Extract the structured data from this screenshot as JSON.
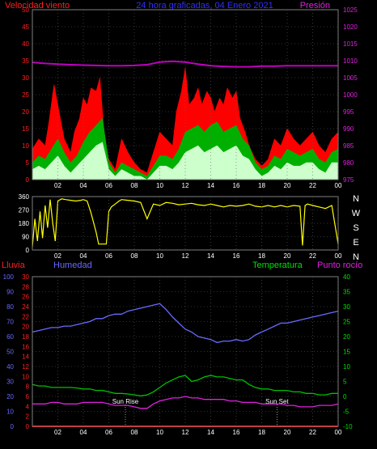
{
  "header": {
    "left": "Velocidad viento",
    "center": "24 hora graficadas, 04 Enero 2021",
    "right": "Presión"
  },
  "colors": {
    "background": "#000000",
    "frame": "#808080",
    "grid": "#606060",
    "gust": "#ff0000",
    "wind_avg": "#00b000",
    "wind_low": "#ccffcc",
    "pressure": "#c000c0",
    "direction": "#ffff00",
    "rain": "#ff0000",
    "humidity": "#6a6aff",
    "temperature": "#00c000",
    "dewpoint": "#e020e0",
    "label_red": "#ff2020",
    "label_blue": "#6a6aff",
    "label_green": "#00e000",
    "label_magenta": "#e020e0",
    "axis_white": "#ffffff"
  },
  "chart_data": [
    {
      "type": "area",
      "name": "wind-pressure",
      "x_labels": [
        "02",
        "04",
        "06",
        "08",
        "10",
        "12",
        "14",
        "16",
        "18",
        "20",
        "22",
        "00"
      ],
      "x_range": [
        0,
        24
      ],
      "y_left": {
        "label": "Velocidad viento",
        "range": [
          0,
          50
        ],
        "ticks": [
          0,
          5,
          10,
          15,
          20,
          25,
          30,
          35,
          40,
          45,
          50
        ]
      },
      "y_right": {
        "label": "Presión",
        "range": [
          975,
          1025
        ],
        "ticks": [
          975,
          980,
          985,
          990,
          995,
          1000,
          1005,
          1010,
          1015,
          1020,
          1025
        ]
      },
      "series": [
        {
          "name": "gust",
          "color": "#ff0000",
          "axis": "left",
          "x": [
            0,
            0.5,
            1,
            1.3,
            1.7,
            2,
            2.5,
            3,
            3.3,
            3.7,
            4,
            4.3,
            4.6,
            5,
            5.3,
            5.7,
            6,
            6.5,
            7,
            7.5,
            8,
            8.5,
            9,
            9.5,
            10,
            10.5,
            11,
            11.3,
            11.7,
            12,
            12.3,
            12.7,
            13,
            13.3,
            13.7,
            14,
            14.3,
            14.7,
            15,
            15.3,
            15.7,
            16,
            16.3,
            16.7,
            17,
            17.5,
            18,
            18.5,
            19,
            19.5,
            20,
            20.5,
            21,
            21.5,
            22,
            22.5,
            23,
            23.5,
            24
          ],
          "y": [
            9,
            12,
            10,
            17,
            28,
            22,
            12,
            8,
            14,
            18,
            24,
            22,
            27,
            26,
            30,
            10,
            6,
            3,
            12,
            8,
            5,
            3,
            2,
            8,
            14,
            12,
            10,
            20,
            26,
            33,
            22,
            24,
            27,
            22,
            26,
            24,
            20,
            24,
            22,
            27,
            24,
            26,
            18,
            14,
            10,
            6,
            4,
            6,
            12,
            10,
            15,
            12,
            10,
            12,
            14,
            10,
            8,
            12,
            14
          ]
        },
        {
          "name": "average",
          "color": "#00b000",
          "axis": "left",
          "x": [
            0,
            0.5,
            1,
            1.5,
            2,
            2.5,
            3,
            3.5,
            4,
            4.5,
            5,
            5.5,
            6,
            6.5,
            7,
            7.5,
            8,
            8.5,
            9,
            9.5,
            10,
            10.5,
            11,
            11.5,
            12,
            12.5,
            13,
            13.5,
            14,
            14.5,
            15,
            15.5,
            16,
            16.5,
            17,
            17.5,
            18,
            18.5,
            19,
            19.5,
            20,
            20.5,
            21,
            21.5,
            22,
            22.5,
            23,
            23.5,
            24
          ],
          "y": [
            5,
            7,
            6,
            9,
            12,
            8,
            5,
            7,
            11,
            14,
            16,
            18,
            5,
            2,
            5,
            4,
            3,
            2,
            1,
            4,
            7,
            7,
            6,
            9,
            14,
            15,
            16,
            14,
            16,
            17,
            14,
            15,
            16,
            12,
            10,
            5,
            3,
            4,
            7,
            6,
            9,
            8,
            7,
            8,
            9,
            6,
            5,
            8,
            9
          ]
        },
        {
          "name": "low",
          "color": "#ccffcc",
          "axis": "left",
          "x": [
            0,
            0.5,
            1,
            1.5,
            2,
            2.5,
            3,
            3.5,
            4,
            4.5,
            5,
            5.5,
            6,
            6.5,
            7,
            7.5,
            8,
            8.5,
            9,
            9.5,
            10,
            10.5,
            11,
            11.5,
            12,
            12.5,
            13,
            13.5,
            14,
            14.5,
            15,
            15.5,
            16,
            16.5,
            17,
            17.5,
            18,
            18.5,
            19,
            19.5,
            20,
            20.5,
            21,
            21.5,
            22,
            22.5,
            23,
            23.5,
            24
          ],
          "y": [
            3,
            4,
            3,
            5,
            7,
            4,
            2,
            4,
            6,
            8,
            10,
            11,
            3,
            1,
            3,
            2,
            1,
            1,
            0,
            2,
            4,
            4,
            3,
            5,
            8,
            9,
            10,
            8,
            9,
            10,
            8,
            9,
            10,
            7,
            6,
            3,
            1,
            2,
            4,
            3,
            5,
            4,
            4,
            5,
            5,
            3,
            2,
            5,
            5
          ]
        },
        {
          "name": "pressure",
          "color": "#c000c0",
          "axis": "right",
          "x": [
            0,
            1,
            2,
            3,
            4,
            5,
            6,
            7,
            8,
            9,
            10,
            11,
            12,
            13,
            14,
            15,
            16,
            17,
            18,
            19,
            20,
            21,
            22,
            23,
            24
          ],
          "y": [
            1009.5,
            1009.2,
            1009,
            1008.8,
            1008.7,
            1008.6,
            1008.5,
            1008.5,
            1008.6,
            1008.8,
            1009.6,
            1009.8,
            1009.6,
            1009,
            1008.5,
            1008.3,
            1008.2,
            1008.2,
            1008.4,
            1008.4,
            1008.5,
            1008.5,
            1008.5,
            1008.5,
            1008.5
          ]
        }
      ]
    },
    {
      "type": "line",
      "name": "wind-direction",
      "x_labels": [
        "02",
        "04",
        "06",
        "08",
        "10",
        "12",
        "14",
        "16",
        "18",
        "20",
        "22",
        "00"
      ],
      "x_range": [
        0,
        24
      ],
      "y_left": {
        "range": [
          0,
          360
        ],
        "ticks": [
          0,
          90,
          180,
          270,
          360
        ]
      },
      "y_right_labels": [
        "N",
        "W",
        "S",
        "E",
        "N"
      ],
      "series": [
        {
          "name": "direction",
          "color": "#ffff00",
          "x": [
            0,
            0.2,
            0.4,
            0.6,
            0.8,
            1,
            1.2,
            1.4,
            1.6,
            1.8,
            2,
            2.3,
            2.6,
            3,
            3.4,
            3.8,
            4,
            4.3,
            4.6,
            5,
            5.2,
            5.4,
            5.8,
            6,
            6.2,
            6.5,
            6.8,
            7,
            7.5,
            8,
            8.5,
            9,
            9.5,
            10,
            10.5,
            11,
            11.5,
            12,
            12.5,
            13,
            13.5,
            14,
            14.5,
            15,
            15.5,
            16,
            16.5,
            17,
            17.5,
            18,
            18.5,
            19,
            19.5,
            20,
            20.5,
            21,
            21.2,
            21.4,
            21.6,
            22,
            22.5,
            23,
            23.5,
            24
          ],
          "y": [
            20,
            210,
            60,
            260,
            80,
            300,
            150,
            340,
            180,
            60,
            330,
            345,
            340,
            335,
            330,
            335,
            340,
            330,
            250,
            120,
            40,
            40,
            40,
            260,
            290,
            310,
            330,
            340,
            335,
            330,
            320,
            210,
            310,
            300,
            320,
            315,
            305,
            310,
            315,
            305,
            300,
            310,
            300,
            290,
            300,
            295,
            300,
            310,
            295,
            290,
            300,
            290,
            300,
            290,
            300,
            295,
            30,
            300,
            310,
            300,
            290,
            280,
            300,
            40
          ]
        }
      ]
    },
    {
      "type": "line",
      "name": "humidity-temperature",
      "x_labels": [
        "02",
        "04",
        "06",
        "08",
        "10",
        "12",
        "14",
        "16",
        "18",
        "20",
        "22",
        "00"
      ],
      "x_range": [
        0,
        24
      ],
      "axes": {
        "humidity": {
          "label": "Humedad",
          "range": [
            0,
            100
          ],
          "ticks": [
            0,
            10,
            20,
            30,
            40,
            50,
            60,
            70,
            80,
            90,
            100
          ]
        },
        "rain": {
          "label": "Lluvia",
          "range": [
            0,
            30
          ],
          "ticks": [
            0,
            2,
            4,
            6,
            8,
            10,
            12,
            14,
            16,
            18,
            20,
            22,
            24,
            26,
            28,
            30
          ]
        },
        "temperature": {
          "label": "Temperatura",
          "range": [
            -10,
            40
          ],
          "ticks": [
            -10,
            -5,
            0,
            5,
            10,
            15,
            20,
            25,
            30,
            35,
            40
          ]
        },
        "dewpoint": {
          "label": "Punto rocío"
        }
      },
      "annotations": [
        {
          "text": "Sun Rise",
          "x": 7.3
        },
        {
          "text": "Sun Set",
          "x": 19.2
        }
      ],
      "series": [
        {
          "name": "rain",
          "color": "#ff0000",
          "axis": "rain",
          "x": [
            0,
            24
          ],
          "y": [
            0,
            0
          ]
        },
        {
          "name": "humidity",
          "color": "#6a6aff",
          "axis": "humidity",
          "x": [
            0,
            0.5,
            1,
            1.5,
            2,
            2.5,
            3,
            3.5,
            4,
            4.5,
            5,
            5.5,
            6,
            6.5,
            7,
            7.5,
            8,
            8.5,
            9,
            9.5,
            10,
            10.5,
            11,
            11.5,
            12,
            12.5,
            13,
            13.5,
            14,
            14.5,
            15,
            15.5,
            16,
            16.5,
            17,
            17.5,
            18,
            18.5,
            19,
            19.5,
            20,
            20.5,
            21,
            21.5,
            22,
            22.5,
            23,
            23.5,
            24
          ],
          "y": [
            63,
            64,
            65,
            66,
            66,
            67,
            67,
            68,
            69,
            70,
            72,
            72,
            74,
            75,
            75,
            77,
            78,
            79,
            80,
            81,
            82,
            78,
            73,
            69,
            65,
            63,
            60,
            59,
            58,
            56,
            57,
            57,
            58,
            57,
            58,
            61,
            63,
            65,
            67,
            69,
            69,
            70,
            71,
            72,
            73,
            74,
            75,
            76,
            77
          ]
        },
        {
          "name": "temperature",
          "color": "#00c000",
          "axis": "temperature",
          "x": [
            0,
            0.5,
            1,
            1.5,
            2,
            2.5,
            3,
            3.5,
            4,
            4.5,
            5,
            5.5,
            6,
            6.5,
            7,
            7.5,
            8,
            8.5,
            9,
            9.5,
            10,
            10.5,
            11,
            11.5,
            12,
            12.5,
            13,
            13.5,
            14,
            14.5,
            15,
            15.5,
            16,
            16.5,
            17,
            17.5,
            18,
            18.5,
            19,
            19.5,
            20,
            20.5,
            21,
            21.5,
            22,
            22.5,
            23,
            23.5,
            24
          ],
          "y": [
            4,
            3.5,
            3.5,
            3,
            3,
            3,
            3,
            2.8,
            2.5,
            2.5,
            2,
            2,
            1.5,
            1,
            1,
            0.8,
            0.5,
            0.2,
            0.5,
            1.5,
            3,
            4.5,
            5.5,
            6.5,
            7,
            5,
            5.5,
            6.5,
            7,
            6.5,
            6.5,
            6,
            5.5,
            5.5,
            4,
            3,
            2.5,
            2.5,
            2,
            2,
            2,
            1.5,
            1.5,
            1,
            1,
            0.5,
            0.5,
            1,
            1
          ]
        },
        {
          "name": "dewpoint",
          "color": "#e020e0",
          "axis": "temperature",
          "x": [
            0,
            0.5,
            1,
            1.5,
            2,
            2.5,
            3,
            3.5,
            4,
            4.5,
            5,
            5.5,
            6,
            6.5,
            7,
            7.5,
            8,
            8.5,
            9,
            9.5,
            10,
            10.5,
            11,
            11.5,
            12,
            12.5,
            13,
            13.5,
            14,
            14.5,
            15,
            15.5,
            16,
            16.5,
            17,
            17.5,
            18,
            18.5,
            19,
            19.5,
            20,
            20.5,
            21,
            21.5,
            22,
            22.5,
            23,
            23.5,
            24
          ],
          "y": [
            -2.5,
            -2.5,
            -2.5,
            -2,
            -2,
            -2.5,
            -2.5,
            -2.5,
            -2,
            -2,
            -2,
            -2,
            -2.5,
            -3,
            -3,
            -3,
            -3.5,
            -4,
            -4,
            -2.5,
            -1.5,
            -1,
            -0.5,
            -0.5,
            0,
            -0.5,
            -0.5,
            -1,
            -1,
            -1,
            -1,
            -1.5,
            -1.5,
            -2,
            -2,
            -2,
            -2.5,
            -2.5,
            -2.5,
            -2.5,
            -3,
            -3,
            -3.5,
            -3.5,
            -3.5,
            -3,
            -3,
            -3,
            -2.5
          ]
        }
      ]
    }
  ]
}
